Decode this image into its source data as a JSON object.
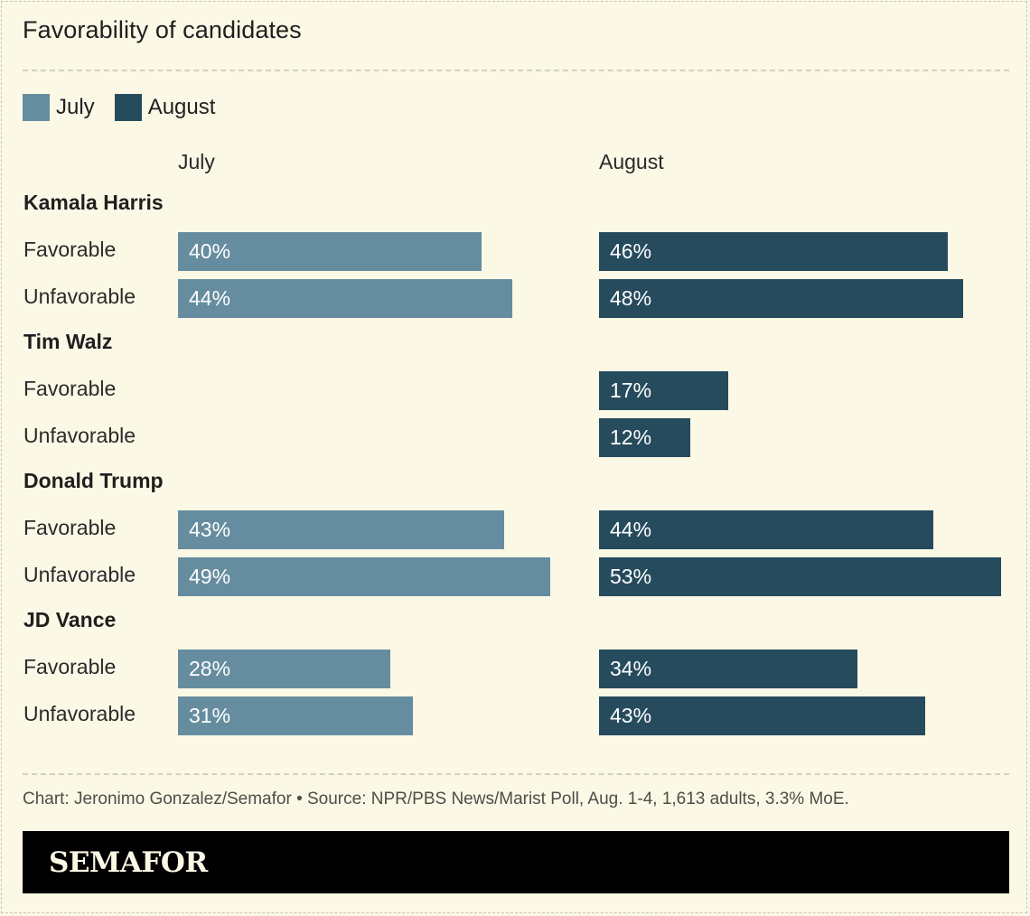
{
  "title": "Favorability of candidates",
  "legend": [
    {
      "label": "July",
      "color": "#668d9f"
    },
    {
      "label": "August",
      "color": "#264b5d"
    }
  ],
  "footer": {
    "note": "Chart: Jeronimo Gonzalez/Semafor • Source: NPR/PBS News/Marist Poll, Aug. 1-4, 1,613 adults, 3.3% MoE.",
    "brand": "SEMAFOR"
  },
  "chart_data": {
    "type": "bar",
    "orientation": "horizontal",
    "title": "Favorability of candidates",
    "panels": [
      "July",
      "August"
    ],
    "groups": [
      {
        "name": "Kamala Harris",
        "rows": [
          {
            "label": "Favorable",
            "July": 40,
            "August": 46
          },
          {
            "label": "Unfavorable",
            "July": 44,
            "August": 48
          }
        ]
      },
      {
        "name": "Tim Walz",
        "rows": [
          {
            "label": "Favorable",
            "July": null,
            "August": 17
          },
          {
            "label": "Unfavorable",
            "July": null,
            "August": 12
          }
        ]
      },
      {
        "name": "Donald Trump",
        "rows": [
          {
            "label": "Favorable",
            "July": 43,
            "August": 44
          },
          {
            "label": "Unfavorable",
            "July": 49,
            "August": 53
          }
        ]
      },
      {
        "name": "JD Vance",
        "rows": [
          {
            "label": "Favorable",
            "July": 28,
            "August": 34
          },
          {
            "label": "Unfavorable",
            "July": 31,
            "August": 43
          }
        ]
      }
    ],
    "unit": "%",
    "xlim": [
      0,
      53
    ],
    "grid": false,
    "legend_position": "top-left",
    "colors": {
      "July": "#668d9f",
      "August": "#264b5d"
    }
  }
}
